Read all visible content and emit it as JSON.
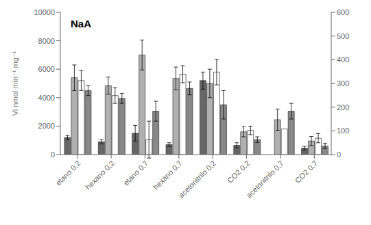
{
  "chart_data": {
    "type": "bar",
    "annotations": [
      "NaA"
    ],
    "ylabel": "Vi  nmol min⁻¹ mg⁻¹",
    "categories": [
      "etano 0,2",
      "hexano 0,2",
      "etano 0,7",
      "hexano 0,7",
      "acetonitrilo 0,2",
      "CO2 0,2",
      "acetonitrilo 0,7",
      "CO2 0,7"
    ],
    "series": [
      {
        "color": "#666666",
        "values": [
          1200,
          900,
          1500,
          700,
          5200,
          650,
          0,
          450
        ],
        "errors": [
          150,
          150,
          550,
          130,
          600,
          180,
          0,
          130
        ]
      },
      {
        "color": "#b0b0b0",
        "values": [
          5400,
          4850,
          7000,
          5350,
          5000,
          1600,
          2450,
          950
        ],
        "errors": [
          900,
          600,
          1050,
          800,
          1000,
          350,
          750,
          320
        ]
      },
      {
        "color": "#ffffff",
        "values": [
          5200,
          4150,
          1050,
          5650,
          5800,
          1700,
          1800,
          1150
        ],
        "errors": [
          700,
          550,
          1300,
          600,
          900,
          300,
          0,
          320
        ]
      },
      {
        "color": "#888888",
        "values": [
          4500,
          3950,
          3050,
          4650,
          3500,
          1050,
          3050,
          600
        ],
        "errors": [
          350,
          350,
          700,
          450,
          1000,
          200,
          550,
          180
        ]
      }
    ],
    "ylim": [
      0,
      10000
    ],
    "yticks": [
      0,
      2000,
      4000,
      6000,
      8000,
      10000
    ],
    "y2lim": [
      0,
      600
    ],
    "y2ticks": [
      0,
      100,
      200,
      300,
      400,
      500,
      600
    ],
    "grid": false
  }
}
